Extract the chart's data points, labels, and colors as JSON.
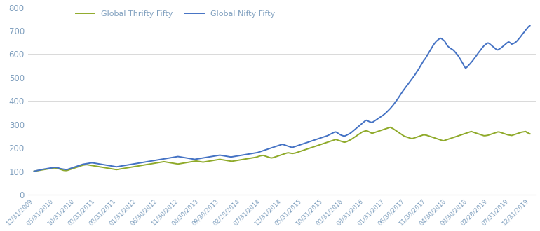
{
  "nifty_color": "#4472C4",
  "thrifty_color": "#8faa2a",
  "nifty_label": "Global Nifty Fifty",
  "thrifty_label": "Global Thrifty Fifty",
  "line_width": 1.4,
  "background_color": "#ffffff",
  "ylim": [
    0,
    800
  ],
  "yticks": [
    0,
    100,
    200,
    300,
    400,
    500,
    600,
    700,
    800
  ],
  "x_tick_labels": [
    "12/31/2009",
    "05/31/2010",
    "10/31/2010",
    "03/31/2011",
    "08/31/2011",
    "01/31/2012",
    "06/30/2012",
    "11/30/2012",
    "04/30/2013",
    "09/30/2013",
    "02/28/2014",
    "07/31/2014",
    "12/31/2014",
    "05/31/2015",
    "10/31/2015",
    "03/31/2016",
    "08/31/2016",
    "01/31/2017",
    "06/30/2017",
    "11/30/2017",
    "04/30/2018",
    "09/30/2018",
    "02/28/2019",
    "07/31/2019",
    "12/31/2019"
  ],
  "tick_color": "#7f9fbe",
  "nifty_data": [
    100,
    101,
    103,
    104,
    105,
    107,
    108,
    109,
    110,
    111,
    112,
    113,
    114,
    115,
    116,
    117,
    116,
    115,
    113,
    111,
    110,
    109,
    108,
    107,
    108,
    110,
    112,
    114,
    116,
    118,
    120,
    122,
    124,
    126,
    128,
    130,
    131,
    132,
    133,
    134,
    135,
    136,
    136,
    135,
    134,
    133,
    132,
    131,
    130,
    129,
    128,
    127,
    126,
    125,
    124,
    123,
    122,
    121,
    120,
    119,
    120,
    121,
    122,
    123,
    124,
    125,
    126,
    127,
    128,
    129,
    130,
    131,
    132,
    133,
    134,
    135,
    136,
    137,
    138,
    139,
    140,
    141,
    142,
    143,
    144,
    145,
    146,
    147,
    148,
    149,
    150,
    151,
    152,
    153,
    154,
    155,
    156,
    157,
    158,
    159,
    160,
    161,
    162,
    163,
    162,
    161,
    160,
    159,
    158,
    157,
    156,
    155,
    154,
    153,
    152,
    151,
    152,
    153,
    154,
    155,
    156,
    157,
    158,
    159,
    160,
    161,
    162,
    163,
    164,
    165,
    166,
    167,
    168,
    169,
    168,
    167,
    166,
    165,
    164,
    163,
    162,
    161,
    162,
    163,
    164,
    165,
    166,
    167,
    168,
    169,
    170,
    171,
    172,
    173,
    174,
    175,
    176,
    177,
    178,
    179,
    180,
    182,
    184,
    186,
    188,
    190,
    192,
    194,
    196,
    198,
    200,
    202,
    204,
    206,
    208,
    210,
    212,
    214,
    215,
    213,
    211,
    209,
    207,
    205,
    203,
    202,
    204,
    206,
    208,
    210,
    212,
    214,
    216,
    218,
    220,
    222,
    224,
    226,
    228,
    230,
    232,
    234,
    236,
    238,
    240,
    242,
    244,
    246,
    248,
    250,
    252,
    255,
    258,
    261,
    264,
    267,
    268,
    265,
    261,
    257,
    254,
    252,
    250,
    252,
    255,
    258,
    261,
    265,
    270,
    275,
    280,
    285,
    290,
    295,
    300,
    305,
    310,
    315,
    318,
    315,
    312,
    310,
    308,
    312,
    316,
    320,
    324,
    328,
    332,
    336,
    340,
    345,
    350,
    356,
    362,
    368,
    375,
    382,
    390,
    398,
    406,
    415,
    424,
    433,
    442,
    450,
    458,
    466,
    474,
    482,
    490,
    498,
    506,
    515,
    524,
    533,
    543,
    553,
    563,
    573,
    580,
    590,
    600,
    610,
    620,
    630,
    640,
    648,
    655,
    660,
    665,
    668,
    665,
    660,
    655,
    645,
    635,
    630,
    625,
    622,
    618,
    612,
    605,
    598,
    590,
    580,
    570,
    560,
    548,
    540,
    545,
    552,
    558,
    565,
    572,
    580,
    588,
    596,
    605,
    612,
    620,
    628,
    635,
    640,
    645,
    648,
    645,
    640,
    635,
    630,
    625,
    620,
    618,
    622,
    625,
    630,
    635,
    640,
    645,
    650,
    652,
    648,
    643,
    645,
    648,
    652,
    658,
    665,
    672,
    680,
    688,
    695,
    703,
    710,
    718,
    722
  ],
  "thrifty_data": [
    100,
    101,
    102,
    103,
    104,
    105,
    106,
    107,
    108,
    109,
    110,
    111,
    112,
    113,
    114,
    114,
    113,
    112,
    110,
    108,
    106,
    104,
    103,
    103,
    104,
    106,
    108,
    110,
    112,
    114,
    116,
    118,
    120,
    122,
    124,
    126,
    127,
    128,
    128,
    127,
    126,
    125,
    124,
    123,
    122,
    121,
    120,
    119,
    118,
    117,
    116,
    115,
    114,
    113,
    112,
    111,
    110,
    109,
    108,
    107,
    108,
    109,
    110,
    111,
    112,
    113,
    114,
    115,
    116,
    117,
    118,
    119,
    120,
    121,
    122,
    123,
    124,
    125,
    126,
    127,
    128,
    129,
    130,
    131,
    132,
    133,
    134,
    135,
    136,
    137,
    138,
    139,
    140,
    141,
    140,
    139,
    138,
    137,
    136,
    135,
    134,
    133,
    132,
    131,
    132,
    133,
    134,
    135,
    136,
    137,
    138,
    139,
    140,
    141,
    142,
    143,
    144,
    143,
    142,
    141,
    140,
    139,
    140,
    141,
    142,
    143,
    144,
    145,
    146,
    147,
    148,
    149,
    150,
    151,
    150,
    149,
    148,
    147,
    146,
    145,
    144,
    143,
    143,
    144,
    145,
    146,
    147,
    148,
    149,
    150,
    151,
    152,
    153,
    154,
    155,
    156,
    157,
    158,
    159,
    160,
    162,
    164,
    166,
    167,
    168,
    166,
    164,
    162,
    160,
    158,
    157,
    158,
    160,
    162,
    164,
    166,
    168,
    170,
    172,
    174,
    176,
    178,
    179,
    178,
    177,
    176,
    177,
    178,
    180,
    182,
    184,
    186,
    188,
    190,
    192,
    194,
    196,
    198,
    200,
    202,
    204,
    206,
    208,
    210,
    212,
    214,
    216,
    218,
    220,
    222,
    224,
    226,
    228,
    230,
    232,
    234,
    236,
    234,
    232,
    230,
    228,
    226,
    224,
    225,
    227,
    230,
    233,
    236,
    240,
    244,
    248,
    252,
    256,
    260,
    264,
    268,
    270,
    272,
    273,
    271,
    268,
    265,
    262,
    264,
    266,
    268,
    270,
    272,
    274,
    276,
    278,
    280,
    282,
    284,
    286,
    288,
    285,
    282,
    278,
    274,
    270,
    266,
    262,
    258,
    254,
    250,
    248,
    246,
    244,
    242,
    240,
    240,
    242,
    244,
    246,
    248,
    250,
    252,
    254,
    256,
    255,
    254,
    252,
    250,
    248,
    246,
    244,
    242,
    240,
    238,
    236,
    234,
    232,
    230,
    232,
    234,
    236,
    238,
    240,
    242,
    244,
    246,
    248,
    250,
    252,
    254,
    256,
    258,
    260,
    262,
    264,
    266,
    268,
    270,
    268,
    266,
    264,
    262,
    260,
    258,
    256,
    254,
    252,
    252,
    253,
    254,
    256,
    258,
    260,
    262,
    264,
    266,
    268,
    268,
    266,
    264,
    262,
    260,
    258,
    256,
    255,
    254,
    253,
    255,
    257,
    259,
    261,
    263,
    265,
    267,
    268,
    269,
    270,
    265,
    263,
    260
  ]
}
